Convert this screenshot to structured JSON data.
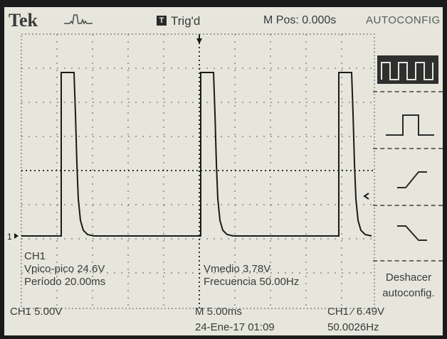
{
  "header": {
    "brand": "Tek",
    "trigger_badge": "T",
    "trigger_status": "Trig'd",
    "horizontal_position": "M Pos: 0.000s",
    "menu_title": "AUTOCONFIG"
  },
  "measurements": {
    "channel": "CH1",
    "vpp": "Vpico-pico 24.6V",
    "period": "Período 20.00ms",
    "vmean": "Vmedio 3.78V",
    "frequency": "Frecuencia 50.00Hz"
  },
  "side_menu": {
    "options": [
      {
        "icon": "multi-cycle-square-wave-icon"
      },
      {
        "icon": "single-cycle-pulse-icon"
      },
      {
        "icon": "rising-edge-icon"
      },
      {
        "icon": "falling-edge-icon"
      }
    ],
    "undo_line1": "Deshacer",
    "undo_line2": "autoconfig."
  },
  "status_bar": {
    "ch1_scale": "CH1  5.00V",
    "time_scale": "M 5.00ms",
    "trigger_info": "CH1 ⁄ 6.49V",
    "datetime": "24-Ene-17 01:09",
    "trigger_frequency": "50.0026Hz"
  },
  "channel_marker": "1",
  "colors": {
    "screen_bg": "#e6e6dd",
    "trace": "#1a1a1a",
    "grid": "#555555"
  }
}
